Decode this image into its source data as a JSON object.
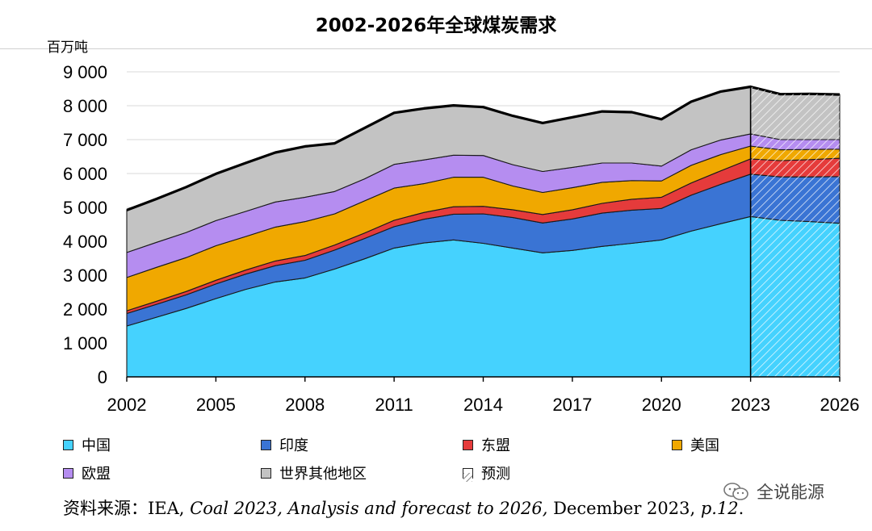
{
  "title": "2002-2026年全球煤炭需求",
  "unit_label": "百万吨",
  "source": {
    "prefix": "资料来源：IEA, ",
    "italic": "Coal 2023, Analysis and forecast to 2026,",
    "middle": " December 2023, ",
    "page": "p.12",
    "suffix": "."
  },
  "watermark": {
    "text": "全说能源",
    "icon": "wechat-icon"
  },
  "legend": [
    {
      "label": "中国",
      "color": "#45d2fe"
    },
    {
      "label": "印度",
      "color": "#3a74d4"
    },
    {
      "label": "东盟",
      "color": "#e53b3b"
    },
    {
      "label": "美国",
      "color": "#f0a800"
    },
    {
      "label": "欧盟",
      "color": "#b58df0"
    },
    {
      "label": "世界其他地区",
      "color": "#c3c3c3"
    },
    {
      "label": "预测",
      "color": "hatch"
    }
  ],
  "chart_data": {
    "type": "area",
    "stacked": true,
    "x": [
      2002,
      2003,
      2004,
      2005,
      2006,
      2007,
      2008,
      2009,
      2010,
      2011,
      2012,
      2013,
      2014,
      2015,
      2016,
      2017,
      2018,
      2019,
      2020,
      2021,
      2022,
      2023,
      2024,
      2025,
      2026
    ],
    "xticks": [
      "2002",
      "2005",
      "2008",
      "2011",
      "2014",
      "2017",
      "2020",
      "2023",
      "2026"
    ],
    "yticks": [
      "0",
      "1 000",
      "2 000",
      "3 000",
      "4 000",
      "5 000",
      "6 000",
      "7 000",
      "8 000",
      "9 000"
    ],
    "ylim": [
      0,
      9000
    ],
    "forecast_start": 2023,
    "grid": "horizontal",
    "legend_position": "bottom",
    "series": [
      {
        "name": "中国",
        "color": "#45d2fe",
        "values": [
          1500,
          1760,
          2020,
          2310,
          2580,
          2800,
          2920,
          3180,
          3480,
          3800,
          3950,
          4040,
          3940,
          3800,
          3660,
          3730,
          3850,
          3940,
          4040,
          4300,
          4520,
          4730,
          4620,
          4580,
          4530
        ]
      },
      {
        "name": "印度",
        "color": "#3a74d4",
        "values": [
          370,
          380,
          400,
          430,
          450,
          480,
          520,
          560,
          600,
          630,
          700,
          760,
          870,
          900,
          880,
          930,
          980,
          980,
          930,
          1060,
          1160,
          1250,
          1280,
          1320,
          1380
        ]
      },
      {
        "name": "东盟",
        "color": "#e53b3b",
        "values": [
          80,
          90,
          100,
          110,
          120,
          140,
          140,
          150,
          160,
          190,
          200,
          220,
          220,
          230,
          250,
          270,
          290,
          320,
          330,
          360,
          400,
          450,
          480,
          510,
          540
        ]
      },
      {
        "name": "美国",
        "color": "#f0a800",
        "values": [
          980,
          1000,
          1000,
          1020,
          990,
          1000,
          1000,
          920,
          950,
          950,
          850,
          870,
          860,
          700,
          650,
          650,
          620,
          550,
          480,
          520,
          480,
          380,
          320,
          300,
          270
        ]
      },
      {
        "name": "欧盟",
        "color": "#b58df0",
        "values": [
          740,
          740,
          740,
          740,
          740,
          740,
          720,
          660,
          650,
          700,
          700,
          650,
          640,
          630,
          620,
          600,
          570,
          520,
          440,
          460,
          430,
          360,
          300,
          290,
          280
        ]
      },
      {
        "name": "世界其他地区",
        "color": "#c3c3c3",
        "values": [
          1250,
          1280,
          1340,
          1380,
          1430,
          1460,
          1500,
          1420,
          1500,
          1520,
          1520,
          1470,
          1430,
          1440,
          1430,
          1480,
          1520,
          1500,
          1380,
          1420,
          1430,
          1390,
          1340,
          1350,
          1330
        ]
      }
    ]
  }
}
